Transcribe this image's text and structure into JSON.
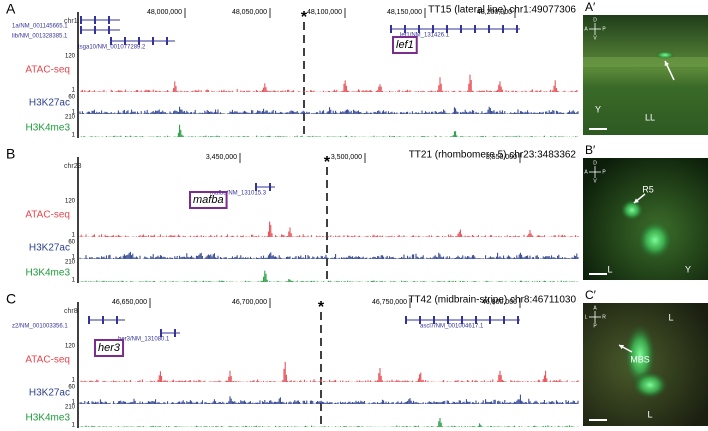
{
  "panels": [
    {
      "letter": "A",
      "title": "TT15 (lateral line) chr1:49077306",
      "chrom": "chr1",
      "marker": "*",
      "coords": [
        "48,000,000",
        "48,050,000",
        "48,100,000",
        "48,150,000",
        "48,200,000"
      ],
      "genes": [
        "1a/NM_001145665.1",
        "lib/NM_001328385.1",
        "tsga10/NM_001077289.2",
        "lef1/NM_131426.1"
      ],
      "highlight": "lef1",
      "tracks": [
        {
          "name": "ATAC-seq",
          "max": 120,
          "min": 1
        },
        {
          "name": "H3K27ac",
          "max": 60,
          "min": 1
        },
        {
          "name": "H3K4me3",
          "max": 210,
          "min": 1
        }
      ]
    },
    {
      "letter": "B",
      "title": "TT21 (rhombomere 5) chr23:3483362",
      "chrom": "chr23",
      "marker": "*",
      "coords": [
        "3,450,000",
        "3,500,000",
        "3,550,000"
      ],
      "genes": [
        "mafba/NM_131015.3"
      ],
      "highlight": "mafba",
      "tracks": [
        {
          "name": "ATAC-seq",
          "max": 120,
          "min": 1
        },
        {
          "name": "H3K27ac",
          "max": 60,
          "min": 1
        },
        {
          "name": "H3K4me3",
          "max": 210,
          "min": 1
        }
      ]
    },
    {
      "letter": "C",
      "title": "TT42 (midbrain-stripe) chr8:46711030",
      "chrom": "chr8",
      "marker": "*",
      "coords": [
        "46,650,000",
        "46,700,000",
        "46,750,000",
        "46,800,000"
      ],
      "genes": [
        "z2/NM_001003356.1",
        "her3/NM_131080.1",
        "ascl7/NM_001004617.1"
      ],
      "highlight": "her3",
      "tracks": [
        {
          "name": "ATAC-seq",
          "max": 120,
          "min": 1
        },
        {
          "name": "H3K27ac",
          "max": 60,
          "min": 1
        },
        {
          "name": "H3K4me3",
          "max": 210,
          "min": 1
        }
      ]
    }
  ],
  "images": [
    {
      "letter": "A′",
      "compass": [
        "D",
        "A",
        "P",
        "V"
      ],
      "labels": [
        "LL",
        "Y"
      ]
    },
    {
      "letter": "B′",
      "compass": [
        "D",
        "A",
        "P",
        "V"
      ],
      "labels": [
        "R5",
        "L",
        "Y"
      ]
    },
    {
      "letter": "C′",
      "compass": [
        "A",
        "L",
        "R",
        "P"
      ],
      "labels": [
        "L",
        "MBS",
        "L"
      ]
    }
  ]
}
